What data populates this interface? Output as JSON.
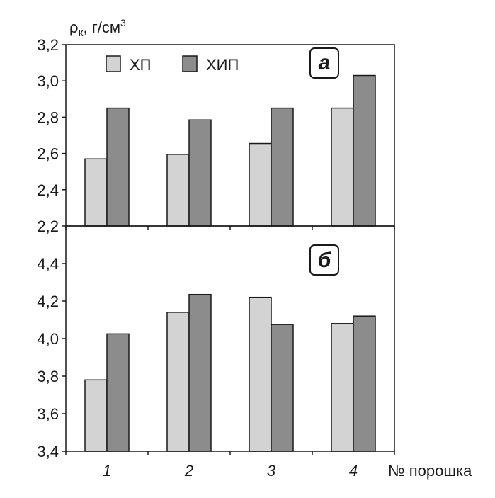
{
  "chart_data": [
    {
      "type": "bar",
      "panel_label": "а",
      "ylabel": "ρк, г/см³",
      "ylim": [
        2.2,
        3.2
      ],
      "yticks": [
        "2,2",
        "2,4",
        "2,6",
        "2,8",
        "3,0",
        "3,2"
      ],
      "categories": [
        "1",
        "2",
        "3",
        "4"
      ],
      "series": [
        {
          "name": "ХП",
          "color": "#d3d3d3",
          "values": [
            2.57,
            2.595,
            2.655,
            2.85
          ]
        },
        {
          "name": "ХИП",
          "color": "#8c8c8c",
          "values": [
            2.85,
            2.785,
            2.85,
            3.03
          ]
        }
      ],
      "legend_position": "top-left",
      "grid": false
    },
    {
      "type": "bar",
      "panel_label": "б",
      "ylim": [
        3.4,
        4.6
      ],
      "yticks": [
        "3,4",
        "3,6",
        "3,8",
        "4,0",
        "4,2",
        "4,4"
      ],
      "categories": [
        "1",
        "2",
        "3",
        "4"
      ],
      "xlabel": "№ порошка",
      "series": [
        {
          "name": "ХП",
          "color": "#d3d3d3",
          "values": [
            3.78,
            4.14,
            4.22,
            4.08
          ]
        },
        {
          "name": "ХИП",
          "color": "#8c8c8c",
          "values": [
            4.025,
            4.235,
            4.075,
            4.12
          ]
        }
      ],
      "grid": false
    }
  ]
}
